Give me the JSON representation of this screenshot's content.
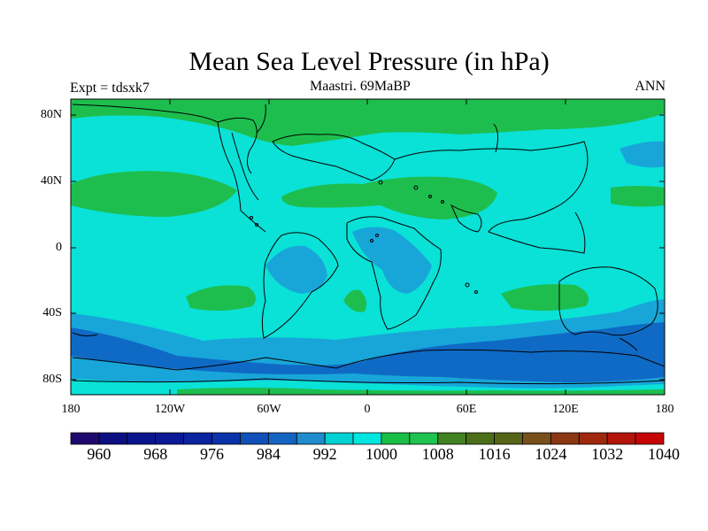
{
  "map": {
    "title": "Mean Sea Level Pressure (in hPa)",
    "left_label": "Expt = tdsxk7",
    "center_label": "Maastri.  69MaBP",
    "right_label": "ANN",
    "projection": "cylindrical-equidistant",
    "extent": {
      "lon": [
        -180,
        180
      ],
      "lat": [
        -90,
        90
      ]
    },
    "lat_ticks": [
      "80N",
      "40N",
      "0",
      "40S",
      "80S"
    ],
    "lon_ticks": [
      "180",
      "120W",
      "60W",
      "0",
      "60E",
      "120E",
      "180"
    ]
  },
  "colorbar": {
    "labels": [
      "960",
      "968",
      "976",
      "984",
      "992",
      "1000",
      "1008",
      "1016",
      "1024",
      "1032",
      "1040"
    ],
    "colors": [
      "#1e0a6e",
      "#0c0f82",
      "#0a148c",
      "#0a1996",
      "#0a23a0",
      "#0a32aa",
      "#1050b9",
      "#1464c3",
      "#1e8ccd",
      "#00d2d2",
      "#00e6e1",
      "#19be46",
      "#1ec350",
      "#418223",
      "#4b6e19",
      "#556419",
      "#785019",
      "#8c3714",
      "#a0280f",
      "#b4140a",
      "#c80505"
    ]
  },
  "colors": {
    "cyan": "#0ae1d7",
    "mid_blue": "#18a6d9",
    "dark_blue": "#0f6ac5",
    "green": "#1ebe4e"
  }
}
